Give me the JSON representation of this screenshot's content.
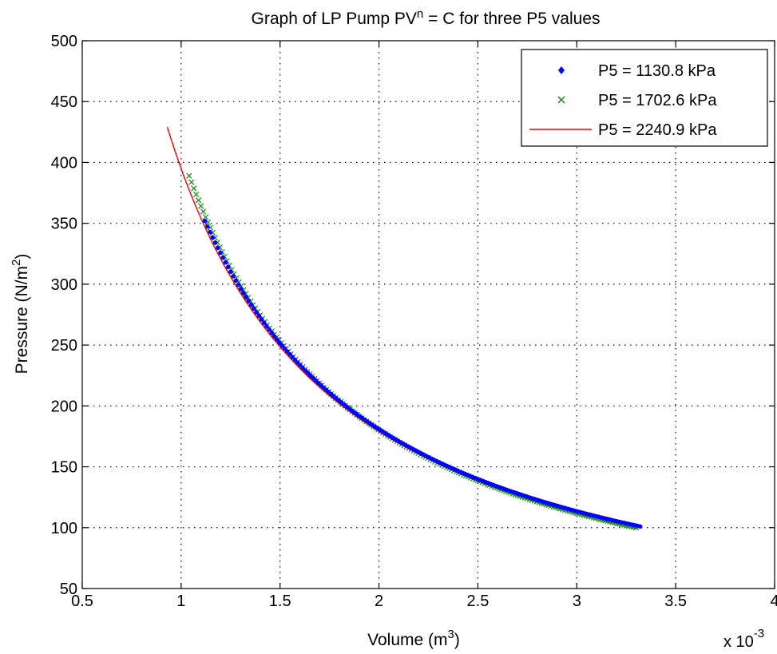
{
  "chart_data": {
    "type": "scatter",
    "title_parts": {
      "before": "Graph of LP Pump PV",
      "superscript": "n",
      "after": " = C for three P5 values"
    },
    "xlabel_parts": {
      "before": "Volume (m",
      "superscript": "3",
      "after": ")"
    },
    "ylabel_parts": {
      "before": "Pressure (N/m",
      "superscript": "2",
      "after": ")"
    },
    "x_multiplier_parts": {
      "before": "x 10",
      "superscript": "-3"
    },
    "xlim": [
      0.5,
      4
    ],
    "ylim": [
      50,
      500
    ],
    "xticks": [
      0.5,
      1,
      1.5,
      2,
      2.5,
      3,
      3.5,
      4
    ],
    "xtick_labels": [
      "0.5",
      "1",
      "1.5",
      "2",
      "2.5",
      "3",
      "3.5",
      "4"
    ],
    "yticks": [
      50,
      100,
      150,
      200,
      250,
      300,
      350,
      400,
      450,
      500
    ],
    "ytick_labels": [
      "50",
      "100",
      "150",
      "200",
      "250",
      "300",
      "350",
      "400",
      "450",
      "500"
    ],
    "grid": true,
    "legend_position": "top-right",
    "series": [
      {
        "name": "P5 = 1130.8 kPa",
        "marker": "dot",
        "color": "#0000ff",
        "curve": {
          "x_start": 1.12,
          "x_end": 3.32,
          "y_at_start": 352,
          "y_at_end": 101,
          "points": 170
        }
      },
      {
        "name": "P5 = 1702.6 kPa",
        "marker": "x",
        "color": "#008000",
        "curve": {
          "x_start": 1.04,
          "x_end": 3.3,
          "y_at_start": 389,
          "y_at_end": 100,
          "points": 190
        }
      },
      {
        "name": "P5 = 2240.9 kPa",
        "marker": "line",
        "color": "#ff0000",
        "curve": {
          "x_start": 0.93,
          "x_end": 3.3,
          "y_at_start": 429,
          "y_at_end": 101,
          "points": 140
        }
      }
    ]
  }
}
